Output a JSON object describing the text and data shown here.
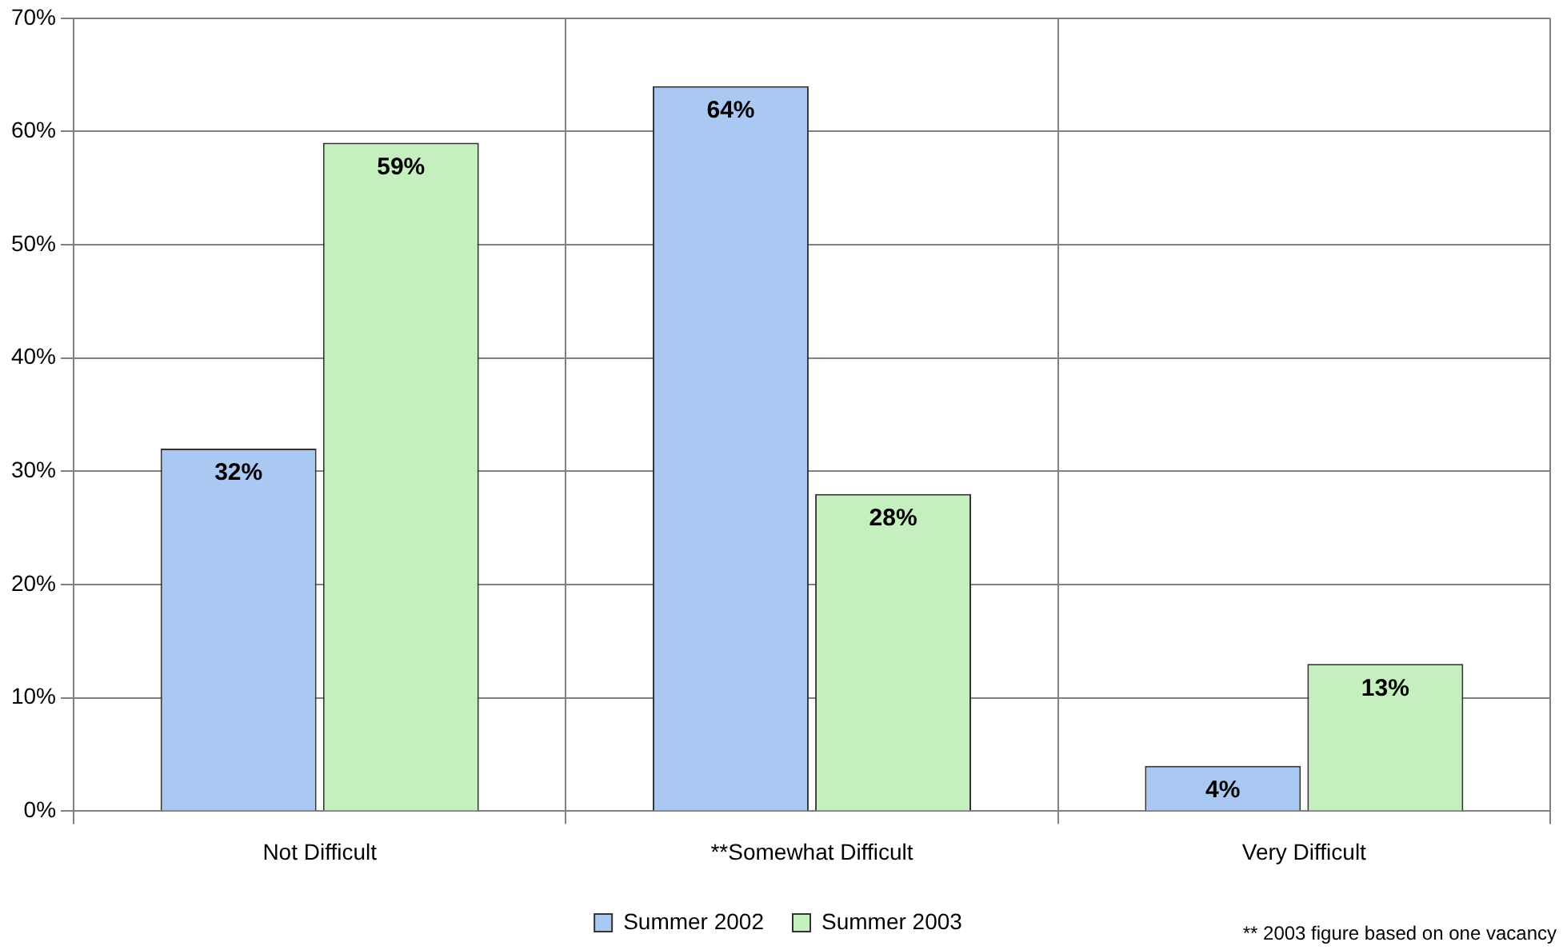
{
  "chart_data": {
    "type": "bar",
    "categories": [
      "Not Difficult",
      "**Somewhat Difficult",
      "Very Difficult"
    ],
    "series": [
      {
        "name": "Summer 2002",
        "color": "#a9c9f2",
        "values": [
          32,
          64,
          4
        ],
        "value_labels": [
          "32%",
          "64%",
          "4%"
        ]
      },
      {
        "name": "Summer 2003",
        "color": "#c6efc0",
        "values": [
          59,
          28,
          13
        ],
        "value_labels": [
          "59%",
          "28%",
          "13%"
        ]
      }
    ],
    "ylim": [
      0,
      70
    ],
    "yticks": [
      {
        "value": 0,
        "label": "0%"
      },
      {
        "value": 10,
        "label": "10%"
      },
      {
        "value": 20,
        "label": "20%"
      },
      {
        "value": 30,
        "label": "30%"
      },
      {
        "value": 40,
        "label": "40%"
      },
      {
        "value": 50,
        "label": "50%"
      },
      {
        "value": 60,
        "label": "60%"
      },
      {
        "value": 70,
        "label": "70%"
      }
    ],
    "grid": true,
    "legend": "bottom",
    "annotations": [
      "** 2003 figure based on one vacancy"
    ]
  }
}
